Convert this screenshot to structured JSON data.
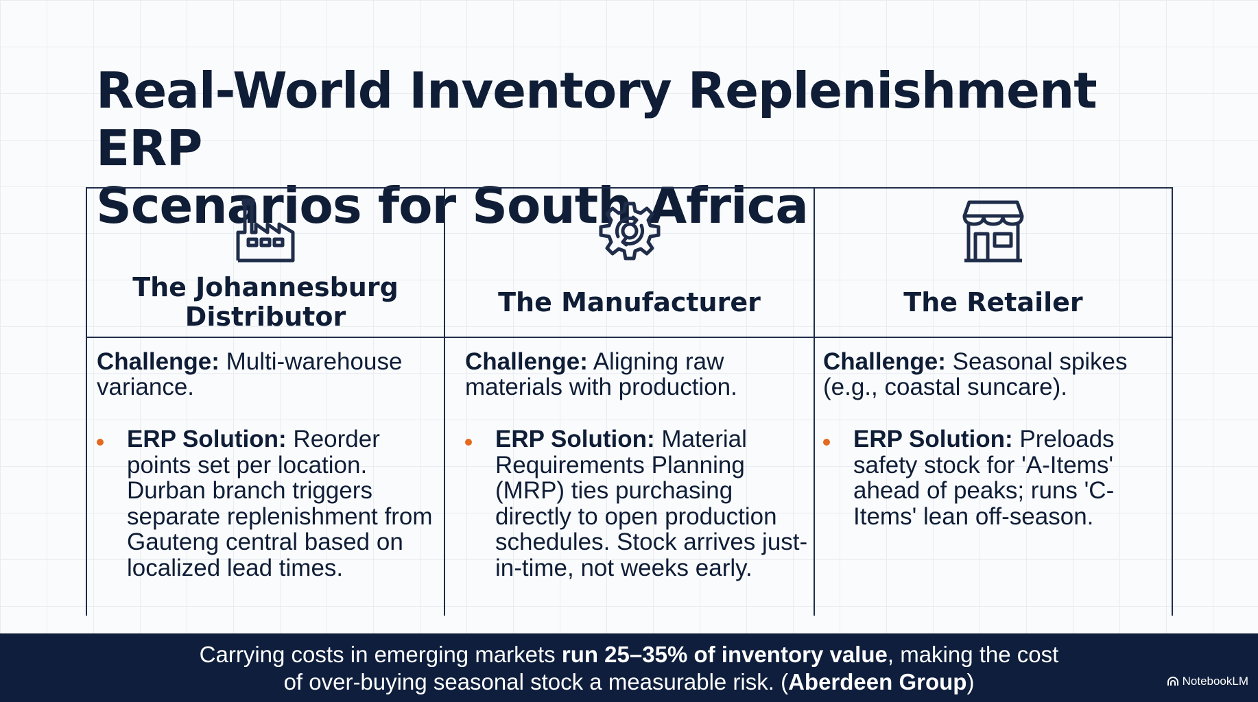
{
  "title": {
    "line1": "Real-World Inventory Replenishment ERP",
    "line2": "Scenarios for South Africa"
  },
  "columns": [
    {
      "icon": "factory-icon",
      "heading_line1": "The Johannesburg",
      "heading_line2": "Distributor",
      "challenge_label": "Challenge:",
      "challenge_text": " Multi-warehouse variance.",
      "solution_label": "ERP Solution:",
      "solution_text": " Reorder points set per location. Durban branch triggers separate replenishment from Gauteng central based on localized lead times."
    },
    {
      "icon": "gear-icon",
      "heading_line1": "The Manufacturer",
      "heading_line2": "",
      "challenge_label": "Challenge:",
      "challenge_text": " Aligning raw materials with production.",
      "solution_label": "ERP Solution:",
      "solution_text": " Material Requirements Planning (MRP) ties purchasing directly to open production schedules. Stock arrives just-in-time, not weeks early."
    },
    {
      "icon": "storefront-icon",
      "heading_line1": "The Retailer",
      "heading_line2": "",
      "challenge_label": "Challenge:",
      "challenge_text": " Seasonal spikes (e.g., coastal suncare).",
      "solution_label": "ERP Solution:",
      "solution_text": " Preloads safety stock for 'A-Items' ahead of peaks; runs 'C-Items' lean off-season."
    }
  ],
  "footer": {
    "part1": "Carrying costs in emerging markets ",
    "bold1": "run 25–35% of inventory value",
    "part2": ", making the cost",
    "part3": "of over-buying seasonal stock a measurable risk. (",
    "bold2": "Aberdeen Group",
    "part4": ")"
  },
  "brand": "NotebookLM",
  "colors": {
    "navy": "#0f1d36",
    "footer_bg": "#0e1e3c",
    "bullet": "#e46a1f",
    "background": "#fafbfc"
  }
}
